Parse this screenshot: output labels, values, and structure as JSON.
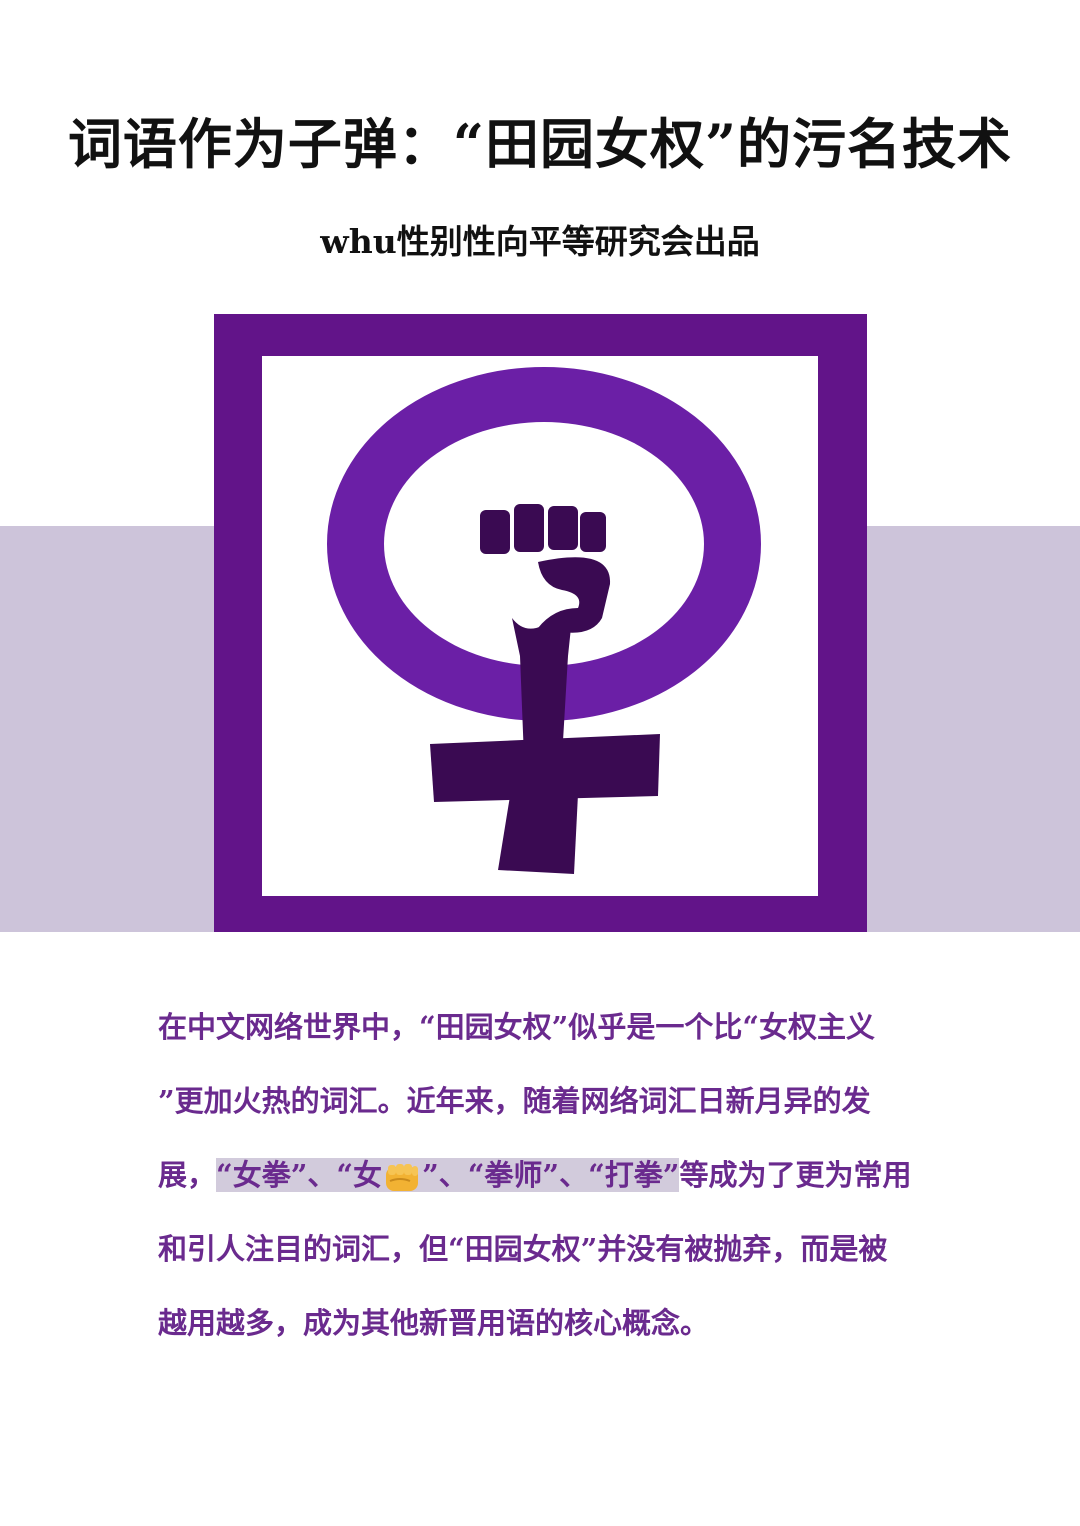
{
  "title": "词语作为子弹：“田园女权”的污名技术",
  "subtitle": "whu性别性向平等研究会出品",
  "emblem": {
    "icon": "feminist-fist-venus-symbol",
    "frame_color": "#621489",
    "band_color": "#cdc4da"
  },
  "body": {
    "line1": "在中文网络世界中，“田园女权”似乎是一个比“女权主义",
    "line2": "”更加火热的词汇。近年来，随着网络词汇日新月异的发",
    "line3_prefix": "展，",
    "line3_hl_a": "“女拳”、“女",
    "emoji_icon": "fist-emoji",
    "line3_hl_b": "”、“拳师”、“打拳”",
    "line3_suffix": "等成为了更为常用",
    "line4": "和引人注目的词汇，但“田园女权”并没有被抛弃，而是被",
    "line5": "越用越多，成为其他新晋用语的核心概念。",
    "text_color": "#6a2a8e",
    "highlight_color": "#d2cbdc"
  }
}
